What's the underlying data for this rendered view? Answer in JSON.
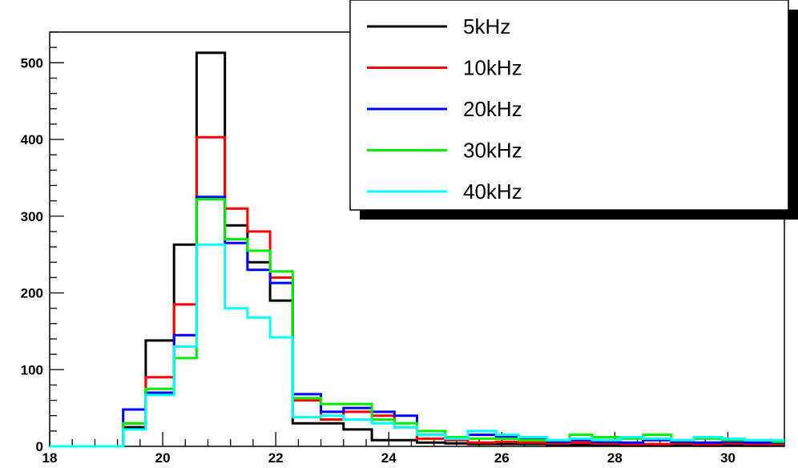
{
  "chart_data": {
    "type": "line",
    "drawstyle": "histogram-step",
    "title": "",
    "xlabel": "",
    "ylabel": "",
    "xlim": [
      18,
      31
    ],
    "ylim": [
      0,
      540
    ],
    "grid": false,
    "legend_placement": "top-right",
    "x_ticks": [
      18,
      20,
      22,
      24,
      26,
      28,
      30
    ],
    "x_tick_labels": [
      "18",
      "20",
      "22",
      "24",
      "26",
      "28",
      "30"
    ],
    "y_ticks": [
      0,
      100,
      200,
      300,
      400,
      500
    ],
    "y_tick_labels": [
      "0",
      "100",
      "200",
      "300",
      "400",
      "500"
    ],
    "bin_edges": [
      18.0,
      18.7,
      19.3,
      19.7,
      20.2,
      20.6,
      21.1,
      21.5,
      21.9,
      22.3,
      22.8,
      23.2,
      23.7,
      24.1,
      24.5,
      25.0,
      25.4,
      25.9,
      26.3,
      26.8,
      27.2,
      27.6,
      28.1,
      28.5,
      29.0,
      29.4,
      29.9,
      30.3,
      30.8,
      31.0
    ],
    "series": [
      {
        "name": "5kHz",
        "color": "#000000",
        "values": [
          0,
          0,
          25,
          138,
          263,
          513,
          288,
          240,
          190,
          30,
          30,
          22,
          8,
          8,
          5,
          4,
          3,
          3,
          3,
          2,
          2,
          2,
          2,
          2,
          2,
          2,
          2,
          2,
          2
        ]
      },
      {
        "name": "10kHz",
        "color": "#ff0000",
        "values": [
          0,
          0,
          30,
          90,
          185,
          403,
          310,
          280,
          220,
          60,
          35,
          45,
          40,
          25,
          10,
          8,
          5,
          6,
          5,
          4,
          5,
          4,
          3,
          3,
          4,
          3,
          4,
          3,
          3
        ]
      },
      {
        "name": "20kHz",
        "color": "#0000ff",
        "values": [
          0,
          0,
          48,
          70,
          145,
          325,
          265,
          230,
          213,
          68,
          45,
          50,
          45,
          40,
          15,
          12,
          15,
          12,
          10,
          6,
          8,
          6,
          5,
          8,
          6,
          5,
          6,
          5,
          5
        ]
      },
      {
        "name": "30kHz",
        "color": "#00ee00",
        "values": [
          0,
          0,
          30,
          75,
          115,
          322,
          270,
          255,
          228,
          63,
          55,
          55,
          35,
          30,
          20,
          12,
          10,
          10,
          8,
          8,
          15,
          12,
          10,
          15,
          8,
          10,
          8,
          8,
          6
        ]
      },
      {
        "name": "40kHz",
        "color": "#00ffff",
        "values": [
          0,
          0,
          22,
          67,
          130,
          263,
          180,
          168,
          142,
          38,
          40,
          35,
          30,
          25,
          15,
          10,
          20,
          15,
          12,
          8,
          10,
          8,
          12,
          10,
          8,
          12,
          10,
          8,
          8
        ]
      }
    ]
  }
}
